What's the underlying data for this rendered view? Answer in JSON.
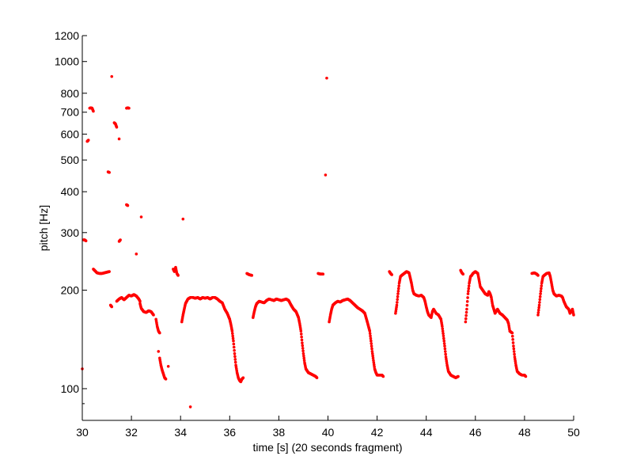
{
  "chart_data": {
    "type": "scatter",
    "title": "",
    "xlabel": "time [s] (20 seconds fragment)",
    "ylabel": "pitch [Hz]",
    "xlim": [
      30,
      50
    ],
    "ylim": [
      80,
      1200
    ],
    "yscale": "log",
    "grid": false,
    "marker_color": "#ff0000",
    "x_ticks": [
      30,
      32,
      34,
      36,
      38,
      40,
      42,
      44,
      46,
      48,
      50
    ],
    "y_ticks": [
      100,
      200,
      300,
      400,
      500,
      600,
      700,
      800,
      1000,
      1200
    ],
    "segments": [
      {
        "points": [
          [
            30.0,
            115
          ]
        ]
      },
      {
        "points": [
          [
            30.05,
            285
          ],
          [
            30.1,
            285
          ],
          [
            30.15,
            283
          ]
        ]
      },
      {
        "points": [
          [
            30.2,
            570
          ],
          [
            30.25,
            575
          ]
        ]
      },
      {
        "points": [
          [
            30.3,
            720
          ],
          [
            30.35,
            722
          ],
          [
            30.4,
            720
          ],
          [
            30.45,
            705
          ]
        ]
      },
      {
        "points": [
          [
            30.45,
            232
          ],
          [
            30.5,
            230
          ],
          [
            30.6,
            226
          ],
          [
            30.7,
            225
          ],
          [
            30.8,
            225
          ],
          [
            30.9,
            226
          ],
          [
            31.0,
            227
          ],
          [
            31.1,
            228
          ]
        ]
      },
      {
        "points": [
          [
            31.05,
            460
          ],
          [
            31.1,
            458
          ]
        ]
      },
      {
        "points": [
          [
            31.2,
            900
          ]
        ]
      },
      {
        "points": [
          [
            31.3,
            650
          ],
          [
            31.35,
            645
          ],
          [
            31.4,
            630
          ]
        ]
      },
      {
        "points": [
          [
            31.5,
            580
          ]
        ]
      },
      {
        "points": [
          [
            31.5,
            282
          ],
          [
            31.55,
            285
          ]
        ]
      },
      {
        "points": [
          [
            31.8,
            720
          ],
          [
            31.85,
            722
          ],
          [
            31.9,
            720
          ]
        ]
      },
      {
        "points": [
          [
            31.8,
            365
          ],
          [
            31.85,
            363
          ]
        ]
      },
      {
        "points": [
          [
            32.2,
            258
          ]
        ]
      },
      {
        "points": [
          [
            32.4,
            335
          ]
        ]
      },
      {
        "points": [
          [
            31.15,
            180
          ],
          [
            31.2,
            178
          ]
        ]
      },
      {
        "points": [
          [
            31.4,
            185
          ],
          [
            31.5,
            188
          ],
          [
            31.6,
            190
          ],
          [
            31.7,
            187
          ],
          [
            31.8,
            190
          ],
          [
            31.9,
            193
          ],
          [
            32.0,
            192
          ],
          [
            32.1,
            194
          ],
          [
            32.2,
            192
          ],
          [
            32.3,
            188
          ],
          [
            32.35,
            185
          ]
        ]
      },
      {
        "points": [
          [
            32.35,
            182
          ],
          [
            32.4,
            176
          ],
          [
            32.5,
            172
          ],
          [
            32.6,
            171
          ],
          [
            32.7,
            173
          ],
          [
            32.8,
            172
          ],
          [
            32.9,
            168
          ]
        ]
      },
      {
        "points": [
          [
            33.0,
            163
          ],
          [
            33.05,
            155
          ],
          [
            33.1,
            150
          ],
          [
            33.15,
            148
          ]
        ]
      },
      {
        "points": [
          [
            33.1,
            130
          ]
        ]
      },
      {
        "points": [
          [
            33.15,
            124
          ],
          [
            33.2,
            118
          ],
          [
            33.25,
            114
          ],
          [
            33.3,
            111
          ],
          [
            33.35,
            108
          ],
          [
            33.4,
            107
          ]
        ]
      },
      {
        "points": [
          [
            33.5,
            117
          ]
        ]
      },
      {
        "points": [
          [
            33.7,
            232
          ],
          [
            33.75,
            228
          ],
          [
            33.8,
            235
          ],
          [
            33.85,
            225
          ],
          [
            33.9,
            222
          ]
        ]
      },
      {
        "points": [
          [
            34.1,
            330
          ]
        ]
      },
      {
        "points": [
          [
            34.05,
            160
          ],
          [
            34.1,
            168
          ],
          [
            34.15,
            175
          ],
          [
            34.2,
            182
          ],
          [
            34.3,
            188
          ],
          [
            34.4,
            190
          ],
          [
            34.5,
            190
          ],
          [
            34.6,
            189
          ],
          [
            34.7,
            190
          ],
          [
            34.8,
            188
          ],
          [
            34.9,
            190
          ],
          [
            35.0,
            189
          ],
          [
            35.1,
            190
          ],
          [
            35.2,
            188
          ],
          [
            35.3,
            190
          ],
          [
            35.4,
            190
          ],
          [
            35.5,
            188
          ],
          [
            35.6,
            185
          ],
          [
            35.7,
            183
          ],
          [
            35.8,
            175
          ],
          [
            35.9,
            170
          ],
          [
            36.0,
            163
          ],
          [
            36.05,
            157
          ],
          [
            36.1,
            150
          ],
          [
            36.15,
            140
          ],
          [
            36.2,
            128
          ],
          [
            36.25,
            118
          ],
          [
            36.3,
            112
          ],
          [
            36.35,
            108
          ],
          [
            36.4,
            106
          ],
          [
            36.45,
            105
          ],
          [
            36.5,
            107
          ],
          [
            36.55,
            108
          ]
        ]
      },
      {
        "points": [
          [
            34.4,
            88
          ]
        ]
      },
      {
        "points": [
          [
            36.7,
            225
          ],
          [
            36.75,
            224
          ],
          [
            36.8,
            223
          ],
          [
            36.9,
            222
          ]
        ]
      },
      {
        "points": [
          [
            36.95,
            165
          ],
          [
            37.0,
            172
          ],
          [
            37.05,
            178
          ],
          [
            37.1,
            182
          ],
          [
            37.2,
            185
          ],
          [
            37.3,
            184
          ],
          [
            37.4,
            183
          ],
          [
            37.5,
            186
          ],
          [
            37.6,
            188
          ],
          [
            37.7,
            187
          ],
          [
            37.8,
            186
          ],
          [
            37.9,
            188
          ],
          [
            38.0,
            187
          ],
          [
            38.1,
            186
          ],
          [
            38.2,
            187
          ],
          [
            38.3,
            188
          ],
          [
            38.4,
            186
          ],
          [
            38.5,
            180
          ],
          [
            38.6,
            175
          ],
          [
            38.7,
            172
          ],
          [
            38.8,
            165
          ],
          [
            38.85,
            158
          ],
          [
            38.9,
            150
          ],
          [
            38.95,
            138
          ],
          [
            39.0,
            128
          ],
          [
            39.05,
            120
          ],
          [
            39.1,
            115
          ],
          [
            39.2,
            112
          ],
          [
            39.3,
            111
          ],
          [
            39.4,
            110
          ],
          [
            39.5,
            109
          ],
          [
            39.55,
            108
          ]
        ]
      },
      {
        "points": [
          [
            39.6,
            225
          ],
          [
            39.7,
            224
          ],
          [
            39.8,
            224
          ]
        ]
      },
      {
        "points": [
          [
            39.9,
            450
          ]
        ]
      },
      {
        "points": [
          [
            39.95,
            890
          ]
        ]
      },
      {
        "points": [
          [
            40.05,
            160
          ],
          [
            40.1,
            168
          ],
          [
            40.15,
            175
          ],
          [
            40.2,
            180
          ],
          [
            40.3,
            183
          ],
          [
            40.4,
            185
          ],
          [
            40.5,
            184
          ],
          [
            40.6,
            186
          ],
          [
            40.7,
            187
          ],
          [
            40.8,
            188
          ],
          [
            40.9,
            186
          ],
          [
            41.0,
            183
          ],
          [
            41.1,
            180
          ],
          [
            41.2,
            177
          ],
          [
            41.3,
            175
          ],
          [
            41.4,
            173
          ],
          [
            41.5,
            170
          ],
          [
            41.6,
            160
          ],
          [
            41.7,
            150
          ],
          [
            41.75,
            140
          ],
          [
            41.8,
            130
          ],
          [
            41.85,
            122
          ],
          [
            41.9,
            115
          ],
          [
            41.95,
            112
          ],
          [
            42.0,
            110
          ],
          [
            42.1,
            110
          ],
          [
            42.2,
            110
          ],
          [
            42.25,
            109
          ]
        ]
      },
      {
        "points": [
          [
            42.5,
            228
          ],
          [
            42.55,
            225
          ],
          [
            42.6,
            223
          ]
        ]
      },
      {
        "points": [
          [
            42.75,
            170
          ],
          [
            42.8,
            180
          ],
          [
            42.85,
            195
          ],
          [
            42.9,
            210
          ],
          [
            42.95,
            220
          ],
          [
            43.0,
            222
          ],
          [
            43.1,
            225
          ],
          [
            43.2,
            228
          ],
          [
            43.3,
            226
          ],
          [
            43.35,
            218
          ],
          [
            43.4,
            210
          ],
          [
            43.45,
            200
          ],
          [
            43.5,
            195
          ],
          [
            43.6,
            193
          ],
          [
            43.7,
            192
          ],
          [
            43.8,
            193
          ],
          [
            43.9,
            190
          ],
          [
            43.95,
            185
          ],
          [
            44.0,
            178
          ],
          [
            44.05,
            172
          ],
          [
            44.1,
            168
          ],
          [
            44.2,
            165
          ],
          [
            44.25,
            172
          ],
          [
            44.3,
            175
          ],
          [
            44.4,
            170
          ],
          [
            44.5,
            168
          ],
          [
            44.6,
            163
          ],
          [
            44.65,
            155
          ],
          [
            44.7,
            145
          ],
          [
            44.75,
            135
          ],
          [
            44.8,
            125
          ],
          [
            44.85,
            118
          ],
          [
            44.9,
            113
          ],
          [
            45.0,
            110
          ],
          [
            45.1,
            109
          ],
          [
            45.2,
            108
          ],
          [
            45.3,
            109
          ]
        ]
      },
      {
        "points": [
          [
            45.4,
            230
          ],
          [
            45.45,
            226
          ],
          [
            45.5,
            224
          ]
        ]
      },
      {
        "points": [
          [
            45.6,
            160
          ],
          [
            45.65,
            175
          ],
          [
            45.7,
            195
          ],
          [
            45.75,
            210
          ],
          [
            45.8,
            220
          ],
          [
            45.85,
            222
          ],
          [
            45.9,
            225
          ],
          [
            46.0,
            228
          ],
          [
            46.1,
            225
          ],
          [
            46.15,
            215
          ],
          [
            46.2,
            205
          ],
          [
            46.3,
            200
          ],
          [
            46.4,
            195
          ],
          [
            46.5,
            193
          ],
          [
            46.55,
            198
          ],
          [
            46.6,
            195
          ],
          [
            46.65,
            190
          ],
          [
            46.7,
            180
          ],
          [
            46.75,
            175
          ],
          [
            46.8,
            170
          ],
          [
            46.9,
            175
          ],
          [
            47.0,
            170
          ],
          [
            47.1,
            168
          ],
          [
            47.2,
            165
          ],
          [
            47.3,
            162
          ],
          [
            47.35,
            158
          ],
          [
            47.4,
            150
          ],
          [
            47.5,
            148
          ],
          [
            47.55,
            135
          ],
          [
            47.6,
            125
          ],
          [
            47.65,
            118
          ],
          [
            47.7,
            113
          ],
          [
            47.8,
            111
          ],
          [
            47.9,
            110
          ],
          [
            48.0,
            110
          ],
          [
            48.05,
            109
          ]
        ]
      },
      {
        "points": [
          [
            48.3,
            225
          ],
          [
            48.4,
            226
          ],
          [
            48.5,
            224
          ],
          [
            48.55,
            222
          ]
        ]
      },
      {
        "points": [
          [
            48.55,
            168
          ],
          [
            48.6,
            180
          ],
          [
            48.65,
            195
          ],
          [
            48.7,
            210
          ],
          [
            48.75,
            220
          ],
          [
            48.8,
            222
          ],
          [
            48.9,
            225
          ],
          [
            49.0,
            226
          ],
          [
            49.05,
            220
          ],
          [
            49.1,
            210
          ],
          [
            49.15,
            200
          ],
          [
            49.2,
            195
          ],
          [
            49.3,
            192
          ],
          [
            49.4,
            193
          ],
          [
            49.5,
            192
          ],
          [
            49.55,
            190
          ],
          [
            49.6,
            185
          ],
          [
            49.7,
            178
          ],
          [
            49.8,
            175
          ],
          [
            49.85,
            170
          ],
          [
            49.9,
            172
          ],
          [
            49.95,
            175
          ],
          [
            50.0,
            168
          ]
        ]
      }
    ]
  }
}
